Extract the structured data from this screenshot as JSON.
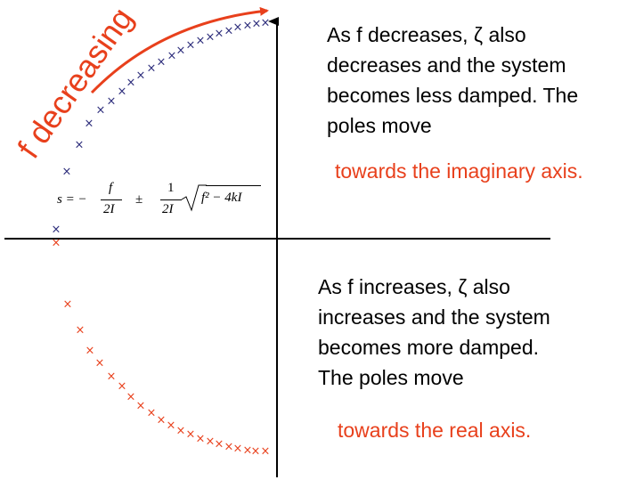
{
  "arrow_label": "f decreasing",
  "upper_note": {
    "lines": [
      "As f decreases, ζ also",
      "decreases and the system",
      "becomes less damped. The",
      "poles move"
    ],
    "emphasis": "towards the imaginary axis."
  },
  "lower_note": {
    "lines": [
      "As f increases, ζ also",
      "increases and the system",
      "becomes more damped.",
      "The poles move"
    ],
    "emphasis": "towards the real axis."
  },
  "formula": {
    "lhs": "s = −",
    "num1": "f",
    "den1": "2I",
    "pm": "±",
    "num2": "1",
    "den2": "2I",
    "radicand": "f² − 4kI"
  },
  "colors": {
    "upper_poles": "#2b2b7a",
    "lower_poles": "#e8401c",
    "arrow": "#e8401c",
    "emphasis": "#e8401c",
    "axes": "#000000"
  },
  "marker": "×"
}
